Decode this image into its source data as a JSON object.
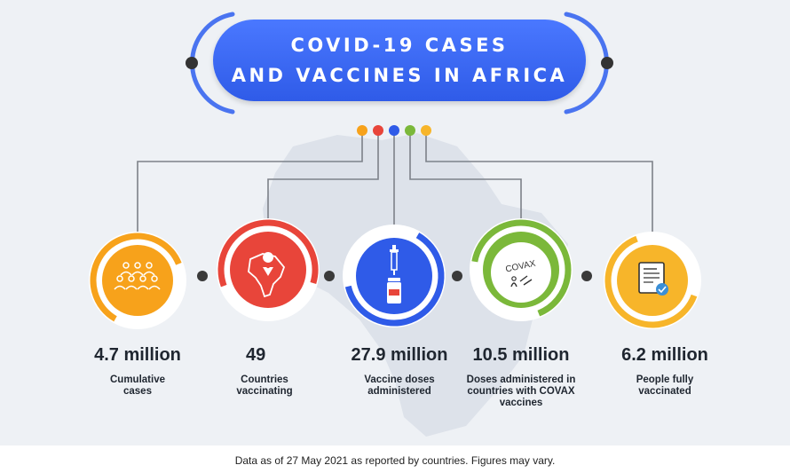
{
  "title": {
    "line1": "COVID-19 CASES",
    "line2": "AND VACCINES IN AFRICA"
  },
  "colors": {
    "orange": "#f7a21b",
    "red": "#e8453a",
    "blue": "#2f5be8",
    "green": "#7bb83a",
    "yellow": "#f7b52a",
    "connector": "#7d8189"
  },
  "stats": [
    {
      "value": "4.7 million",
      "label": "Cumulative cases",
      "icon": "people-group-icon",
      "color": "orange"
    },
    {
      "value": "49",
      "label": "Countries vaccinating",
      "icon": "africa-map-pin-icon",
      "color": "red"
    },
    {
      "value": "27.9 million",
      "label": "Vaccine doses administered",
      "icon": "syringe-vial-icon",
      "color": "blue"
    },
    {
      "value": "10.5 million",
      "label": "Doses administered in countries with COVAX vaccines",
      "icon": "covax-logo-icon",
      "color": "green"
    },
    {
      "value": "6.2 million",
      "label": "People fully vaccinated",
      "icon": "vaccination-certificate-icon",
      "color": "yellow"
    }
  ],
  "covax_text": "COVAX",
  "footer": "Data as of 27 May 2021 as reported by countries. Figures may vary."
}
